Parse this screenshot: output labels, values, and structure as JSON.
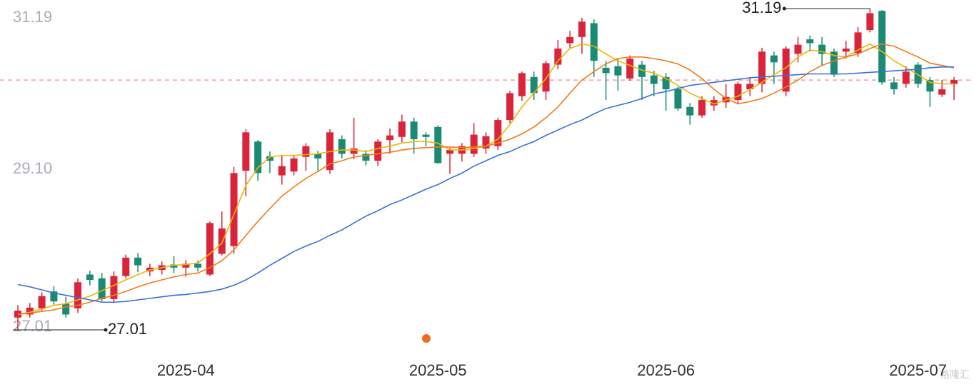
{
  "chart_data": {
    "type": "candlestick",
    "categories": [
      null,
      null,
      null,
      null,
      null,
      null,
      null,
      null,
      null,
      null,
      null,
      null,
      null,
      null,
      "2025-04",
      null,
      null,
      null,
      null,
      null,
      null,
      null,
      null,
      null,
      null,
      null,
      null,
      null,
      null,
      null,
      null,
      null,
      null,
      null,
      null,
      "2025-05",
      null,
      null,
      null,
      null,
      null,
      null,
      null,
      null,
      null,
      null,
      null,
      null,
      null,
      null,
      null,
      null,
      null,
      null,
      "2025-06",
      null,
      null,
      null,
      null,
      null,
      null,
      null,
      null,
      null,
      null,
      null,
      null,
      null,
      null,
      null,
      null,
      null,
      null,
      null,
      null,
      "2025-07",
      null,
      null,
      null
    ],
    "open": [
      27.17,
      27.21,
      27.29,
      27.51,
      27.35,
      27.29,
      27.73,
      27.68,
      27.41,
      27.71,
      27.95,
      27.77,
      27.79,
      27.86,
      27.82,
      27.87,
      27.73,
      28.0,
      28.1,
      29.08,
      29.46,
      29.27,
      29.02,
      29.07,
      29.26,
      29.3,
      29.09,
      29.49,
      29.3,
      29.3,
      29.21,
      29.48,
      29.52,
      29.72,
      29.55,
      29.65,
      29.3,
      29.3,
      29.3,
      29.37,
      29.4,
      29.74,
      30.05,
      30.3,
      30.11,
      30.46,
      30.74,
      30.82,
      31.0,
      30.42,
      30.44,
      30.28,
      30.46,
      30.32,
      30.3,
      30.14,
      29.91,
      29.8,
      29.93,
      29.97,
      30.0,
      30.14,
      30.21,
      30.58,
      30.11,
      30.6,
      30.79,
      30.72,
      30.63,
      30.63,
      30.61,
      30.91,
      31.16,
      30.23,
      30.21,
      30.46,
      30.26,
      30.07,
      30.21
    ],
    "high": [
      27.33,
      27.36,
      27.5,
      27.58,
      27.44,
      27.68,
      27.78,
      27.75,
      27.77,
      27.99,
      28.01,
      27.87,
      27.9,
      27.97,
      27.92,
      27.91,
      28.42,
      28.55,
      29.13,
      29.62,
      29.48,
      29.33,
      29.28,
      29.28,
      29.44,
      29.34,
      29.62,
      29.54,
      29.77,
      29.35,
      29.49,
      29.63,
      29.81,
      29.77,
      29.58,
      29.67,
      29.38,
      29.44,
      29.7,
      29.58,
      29.77,
      30.12,
      30.37,
      30.37,
      30.51,
      30.78,
      30.9,
      31.07,
      31.05,
      30.51,
      30.54,
      30.58,
      30.51,
      30.38,
      30.35,
      30.17,
      29.96,
      30.05,
      30.05,
      30.21,
      30.24,
      30.3,
      30.68,
      30.63,
      30.7,
      30.82,
      30.84,
      30.82,
      30.67,
      30.77,
      30.95,
      31.19,
      31.17,
      30.3,
      30.44,
      30.49,
      30.3,
      30.26,
      30.3
    ],
    "low": [
      27.01,
      27.17,
      27.26,
      27.34,
      27.17,
      27.23,
      27.59,
      27.38,
      27.36,
      27.68,
      27.76,
      27.71,
      27.73,
      27.75,
      27.7,
      27.77,
      27.71,
      27.98,
      28.0,
      28.75,
      28.95,
      29.05,
      28.9,
      29.02,
      29.08,
      29.08,
      29.04,
      29.24,
      29.23,
      29.15,
      29.14,
      29.3,
      29.45,
      29.3,
      29.4,
      29.17,
      29.04,
      29.2,
      29.26,
      29.3,
      29.35,
      29.7,
      29.99,
      30.0,
      30.0,
      30.4,
      30.68,
      30.6,
      30.3,
      30.0,
      30.12,
      30.25,
      30.0,
      30.05,
      29.86,
      29.86,
      29.68,
      29.77,
      29.86,
      29.9,
      29.95,
      30.05,
      30.1,
      30.21,
      30.05,
      30.49,
      30.63,
      30.45,
      30.3,
      30.54,
      30.56,
      30.88,
      30.2,
      30.07,
      30.16,
      30.16,
      29.91,
      30.04,
      30.0
    ],
    "close": [
      27.26,
      27.3,
      27.45,
      27.38,
      27.21,
      27.63,
      27.66,
      27.41,
      27.71,
      27.95,
      27.85,
      27.82,
      27.85,
      27.82,
      27.87,
      27.82,
      28.4,
      28.33,
      29.05,
      29.58,
      29.05,
      29.21,
      29.14,
      29.24,
      29.4,
      29.24,
      29.58,
      29.3,
      29.37,
      29.21,
      29.46,
      29.54,
      29.72,
      29.49,
      29.52,
      29.18,
      29.35,
      29.4,
      29.55,
      29.53,
      29.74,
      30.09,
      30.35,
      30.09,
      30.48,
      30.67,
      30.82,
      31.02,
      30.51,
      30.35,
      30.32,
      30.54,
      30.3,
      30.21,
      30.14,
      29.89,
      29.8,
      30.0,
      30.0,
      30.04,
      30.21,
      30.21,
      30.63,
      30.49,
      30.67,
      30.72,
      30.74,
      30.6,
      30.33,
      30.67,
      30.88,
      31.13,
      30.23,
      30.14,
      30.37,
      30.21,
      30.11,
      30.14,
      30.26
    ],
    "up_color": "#d9243a",
    "down_color": "#1a8a74",
    "series": [
      {
        "color": "#f0b400",
        "values": [
          27.21,
          27.24,
          27.28,
          27.33,
          27.35,
          27.4,
          27.45,
          27.52,
          27.59,
          27.66,
          27.73,
          27.79,
          27.82,
          27.85,
          27.86,
          27.88,
          28.0,
          28.14,
          28.51,
          28.89,
          29.12,
          29.26,
          29.28,
          29.28,
          29.29,
          29.3,
          29.33,
          29.35,
          29.35,
          29.33,
          29.37,
          29.4,
          29.44,
          29.46,
          29.46,
          29.44,
          29.35,
          29.35,
          29.37,
          29.4,
          29.49,
          29.68,
          29.91,
          30.09,
          30.28,
          30.51,
          30.67,
          30.73,
          30.7,
          30.6,
          30.51,
          30.45,
          30.39,
          30.35,
          30.28,
          30.19,
          30.09,
          30.02,
          29.95,
          30.0,
          30.05,
          30.14,
          30.23,
          30.33,
          30.42,
          30.56,
          30.65,
          30.63,
          30.58,
          30.56,
          30.65,
          30.73,
          30.63,
          30.51,
          30.42,
          30.33,
          30.23,
          30.21,
          30.21
        ]
      },
      {
        "color": "#f07c1a",
        "values": [
          27.21,
          27.23,
          27.25,
          27.27,
          27.31,
          27.33,
          27.37,
          27.42,
          27.46,
          27.51,
          27.57,
          27.62,
          27.66,
          27.7,
          27.73,
          27.75,
          27.82,
          27.91,
          28.05,
          28.24,
          28.42,
          28.59,
          28.75,
          28.87,
          28.98,
          29.07,
          29.17,
          29.21,
          29.26,
          29.28,
          29.3,
          29.32,
          29.35,
          29.37,
          29.38,
          29.39,
          29.39,
          29.38,
          29.39,
          29.4,
          29.44,
          29.49,
          29.56,
          29.65,
          29.77,
          29.91,
          30.09,
          30.26,
          30.37,
          30.47,
          30.54,
          30.56,
          30.56,
          30.54,
          30.51,
          30.47,
          30.39,
          30.28,
          30.14,
          30.02,
          29.95,
          29.98,
          30.02,
          30.09,
          30.17,
          30.26,
          30.37,
          30.45,
          30.51,
          30.56,
          30.6,
          30.67,
          30.73,
          30.7,
          30.63,
          30.56,
          30.48,
          30.45,
          30.42
        ]
      },
      {
        "color": "#3b6fd8",
        "values": [
          27.6,
          27.57,
          27.53,
          27.49,
          27.46,
          27.43,
          27.4,
          27.37,
          27.37,
          27.38,
          27.4,
          27.42,
          27.44,
          27.46,
          27.47,
          27.49,
          27.51,
          27.54,
          27.59,
          27.66,
          27.75,
          27.85,
          27.94,
          28.03,
          28.1,
          28.16,
          28.24,
          28.31,
          28.4,
          28.49,
          28.56,
          28.64,
          28.7,
          28.77,
          28.84,
          28.9,
          28.98,
          29.05,
          29.14,
          29.21,
          29.28,
          29.33,
          29.4,
          29.46,
          29.54,
          29.61,
          29.68,
          29.74,
          29.82,
          29.89,
          29.93,
          29.97,
          30.02,
          30.08,
          30.11,
          30.15,
          30.19,
          30.21,
          30.23,
          30.25,
          30.27,
          30.29,
          30.3,
          30.31,
          30.32,
          30.33,
          30.34,
          30.34,
          30.34,
          30.34,
          30.35,
          30.36,
          30.37,
          30.38,
          30.39,
          30.4,
          30.42,
          30.43,
          30.43
        ]
      }
    ],
    "reference_line": 30.26,
    "ylim": [
      27.01,
      31.19
    ],
    "yticks": [
      31.19,
      {
        "value": 29.1,
        "label": "29.10"
      },
      27.01
    ],
    "watermark": "格隆汇"
  }
}
